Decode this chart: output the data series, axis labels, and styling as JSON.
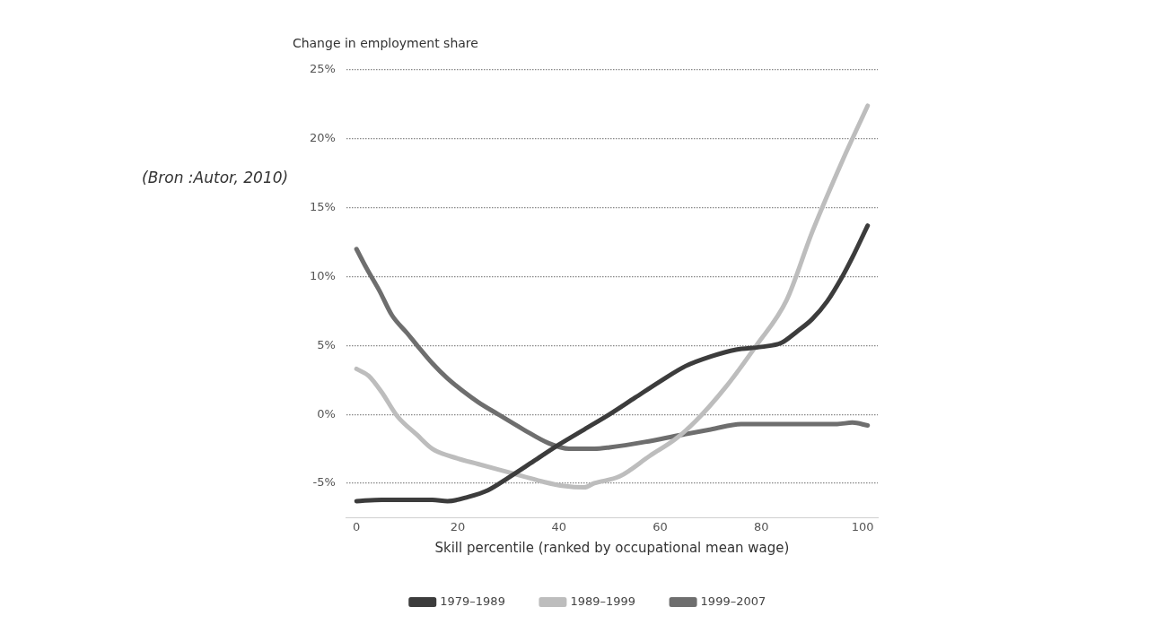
{
  "chart_data": {
    "type": "line",
    "ylabel": "Change in employment share",
    "xlabel": "Skill percentile (ranked by occupational mean wage)",
    "annotations": [
      "(Bron :Autor, 2010)"
    ],
    "xlim": [
      -2,
      103
    ],
    "xticks": [
      0,
      20,
      40,
      60,
      80,
      100
    ],
    "ylim": [
      -7.5,
      25
    ],
    "yticks": [
      {
        "value": -5,
        "label": "-5%"
      },
      {
        "value": 0,
        "label": "0%"
      },
      {
        "value": 5,
        "label": "5%"
      },
      {
        "value": 10,
        "label": "10%"
      },
      {
        "value": 15,
        "label": "15%"
      },
      {
        "value": 20,
        "label": "20%"
      },
      {
        "value": 25,
        "label": "25%"
      }
    ],
    "grid": "y",
    "legend": "bottom",
    "marker": "none",
    "line_style": "solid",
    "series": [
      {
        "name": "1979–1989",
        "color": "#3c3c3c",
        "x": [
          0,
          5,
          10,
          15,
          18,
          22,
          26,
          30,
          35,
          40,
          45,
          50,
          55,
          60,
          65,
          70,
          75,
          80,
          84,
          87,
          90,
          93,
          96,
          98,
          101
        ],
        "values": [
          -6.3,
          -6.2,
          -6.2,
          -6.2,
          -6.3,
          -6.0,
          -5.5,
          -4.6,
          -3.4,
          -2.2,
          -1.1,
          0,
          1.2,
          2.4,
          3.5,
          4.2,
          4.7,
          4.9,
          5.2,
          6.0,
          6.9,
          8.2,
          10.0,
          11.4,
          13.7
        ]
      },
      {
        "name": "1989–1999",
        "color": "#bdbdbd",
        "x": [
          0,
          2.4,
          5,
          8,
          12,
          15,
          20,
          24,
          28,
          33,
          37,
          41,
          45,
          47,
          52,
          58,
          63,
          67,
          73,
          79,
          85,
          90,
          96,
          101
        ],
        "values": [
          3.3,
          2.8,
          1.6,
          -0.1,
          -1.5,
          -2.5,
          -3.2,
          -3.6,
          -4.0,
          -4.5,
          -4.9,
          -5.2,
          -5.3,
          -5.0,
          -4.5,
          -3.0,
          -1.8,
          -0.5,
          2.0,
          5.0,
          8.3,
          13.2,
          18.4,
          22.4
        ]
      },
      {
        "name": "1999–2007",
        "color": "#6e6e6e",
        "x": [
          0,
          2,
          4.5,
          7,
          10,
          12,
          15,
          18,
          21,
          24,
          28,
          33,
          38,
          42,
          47,
          50,
          57,
          64,
          70,
          76,
          85,
          95,
          98,
          101
        ],
        "values": [
          12.0,
          10.6,
          9.0,
          7.2,
          5.9,
          5.0,
          3.7,
          2.6,
          1.7,
          0.9,
          0,
          -1.1,
          -2.1,
          -2.5,
          -2.5,
          -2.4,
          -2.0,
          -1.5,
          -1.1,
          -0.7,
          -0.7,
          -0.7,
          -0.6,
          -0.8
        ]
      }
    ]
  }
}
